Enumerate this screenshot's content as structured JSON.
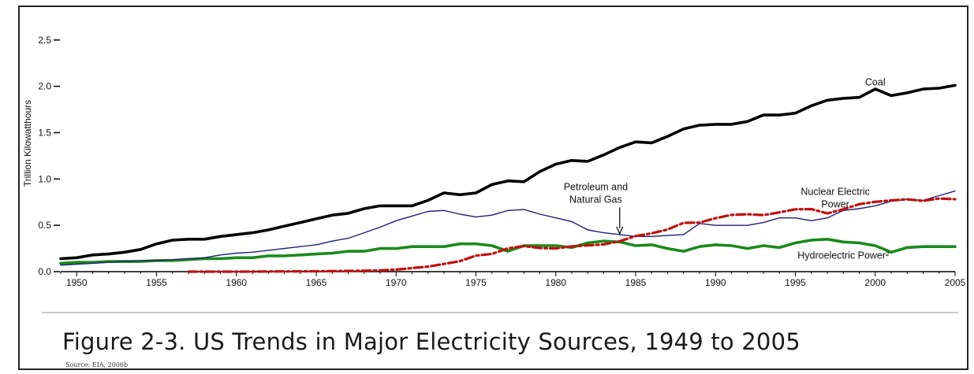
{
  "caption": "Figure 2-3.  US Trends in Major Electricity Sources, 1949 to 2005",
  "source": "Source:  EIA, 2006b",
  "chart_data": {
    "type": "line",
    "title": "",
    "xlabel": "",
    "ylabel": "Trillion Kilowatthours",
    "xlim": [
      1949,
      2005
    ],
    "ylim": [
      0,
      2.6
    ],
    "x_ticks": [
      1950,
      1955,
      1960,
      1965,
      1970,
      1975,
      1980,
      1985,
      1990,
      1995,
      2000,
      2005
    ],
    "x_tick_labels": [
      "1950",
      "1955",
      "1960",
      "1965",
      "1970",
      "1975",
      "1980",
      "1985",
      "1990",
      "1995",
      "2000",
      "2005"
    ],
    "y_ticks": [
      0,
      0.5,
      1.0,
      1.5,
      2.0,
      2.5
    ],
    "y_tick_labels": [
      "0.0",
      "0.5",
      "1.0",
      "1.5",
      "2.0",
      "2.5"
    ],
    "grid": false,
    "legend": "none",
    "series": [
      {
        "name": "Coal",
        "color": "#000000",
        "style": "solid-thick",
        "points": [
          [
            1949,
            0.14
          ],
          [
            1950,
            0.15
          ],
          [
            1951,
            0.18
          ],
          [
            1952,
            0.19
          ],
          [
            1953,
            0.21
          ],
          [
            1954,
            0.24
          ],
          [
            1955,
            0.3
          ],
          [
            1956,
            0.34
          ],
          [
            1957,
            0.35
          ],
          [
            1958,
            0.35
          ],
          [
            1959,
            0.38
          ],
          [
            1960,
            0.4
          ],
          [
            1961,
            0.42
          ],
          [
            1962,
            0.45
          ],
          [
            1963,
            0.49
          ],
          [
            1964,
            0.53
          ],
          [
            1965,
            0.57
          ],
          [
            1966,
            0.61
          ],
          [
            1967,
            0.63
          ],
          [
            1968,
            0.68
          ],
          [
            1969,
            0.71
          ],
          [
            1970,
            0.71
          ],
          [
            1971,
            0.71
          ],
          [
            1972,
            0.77
          ],
          [
            1973,
            0.85
          ],
          [
            1974,
            0.83
          ],
          [
            1975,
            0.85
          ],
          [
            1976,
            0.94
          ],
          [
            1977,
            0.98
          ],
          [
            1978,
            0.97
          ],
          [
            1979,
            1.08
          ],
          [
            1980,
            1.16
          ],
          [
            1981,
            1.2
          ],
          [
            1982,
            1.19
          ],
          [
            1983,
            1.26
          ],
          [
            1984,
            1.34
          ],
          [
            1985,
            1.4
          ],
          [
            1986,
            1.39
          ],
          [
            1987,
            1.46
          ],
          [
            1988,
            1.54
          ],
          [
            1989,
            1.58
          ],
          [
            1990,
            1.59
          ],
          [
            1991,
            1.59
          ],
          [
            1992,
            1.62
          ],
          [
            1993,
            1.69
          ],
          [
            1994,
            1.69
          ],
          [
            1995,
            1.71
          ],
          [
            1996,
            1.79
          ],
          [
            1997,
            1.85
          ],
          [
            1998,
            1.87
          ],
          [
            1999,
            1.88
          ],
          [
            2000,
            1.97
          ],
          [
            2001,
            1.9
          ],
          [
            2002,
            1.93
          ],
          [
            2003,
            1.97
          ],
          [
            2004,
            1.98
          ],
          [
            2005,
            2.01
          ]
        ]
      },
      {
        "name": "Petroleum and Natural Gas",
        "color": "#1f1f78",
        "style": "solid-thin",
        "points": [
          [
            1949,
            0.07
          ],
          [
            1950,
            0.08
          ],
          [
            1951,
            0.09
          ],
          [
            1952,
            0.1
          ],
          [
            1953,
            0.11
          ],
          [
            1954,
            0.12
          ],
          [
            1955,
            0.12
          ],
          [
            1956,
            0.13
          ],
          [
            1957,
            0.14
          ],
          [
            1958,
            0.15
          ],
          [
            1959,
            0.18
          ],
          [
            1960,
            0.2
          ],
          [
            1961,
            0.21
          ],
          [
            1962,
            0.23
          ],
          [
            1963,
            0.25
          ],
          [
            1964,
            0.27
          ],
          [
            1965,
            0.29
          ],
          [
            1966,
            0.33
          ],
          [
            1967,
            0.36
          ],
          [
            1968,
            0.42
          ],
          [
            1969,
            0.48
          ],
          [
            1970,
            0.55
          ],
          [
            1971,
            0.6
          ],
          [
            1972,
            0.65
          ],
          [
            1973,
            0.66
          ],
          [
            1974,
            0.62
          ],
          [
            1975,
            0.59
          ],
          [
            1976,
            0.61
          ],
          [
            1977,
            0.66
          ],
          [
            1978,
            0.67
          ],
          [
            1979,
            0.62
          ],
          [
            1980,
            0.58
          ],
          [
            1981,
            0.54
          ],
          [
            1982,
            0.45
          ],
          [
            1983,
            0.42
          ],
          [
            1984,
            0.4
          ],
          [
            1985,
            0.38
          ],
          [
            1986,
            0.38
          ],
          [
            1987,
            0.39
          ],
          [
            1988,
            0.4
          ],
          [
            1989,
            0.52
          ],
          [
            1990,
            0.5
          ],
          [
            1991,
            0.5
          ],
          [
            1992,
            0.5
          ],
          [
            1993,
            0.53
          ],
          [
            1994,
            0.58
          ],
          [
            1995,
            0.58
          ],
          [
            1996,
            0.55
          ],
          [
            1997,
            0.58
          ],
          [
            1998,
            0.66
          ],
          [
            1999,
            0.68
          ],
          [
            2000,
            0.71
          ],
          [
            2001,
            0.76
          ],
          [
            2002,
            0.78
          ],
          [
            2003,
            0.77
          ],
          [
            2004,
            0.82
          ],
          [
            2005,
            0.87
          ]
        ]
      },
      {
        "name": "Nuclear Electric Power",
        "color": "#c01010",
        "style": "dash-dot",
        "points": [
          [
            1957,
            0.0
          ],
          [
            1960,
            0.0
          ],
          [
            1965,
            0.004
          ],
          [
            1968,
            0.01
          ],
          [
            1969,
            0.014
          ],
          [
            1970,
            0.022
          ],
          [
            1971,
            0.038
          ],
          [
            1972,
            0.054
          ],
          [
            1973,
            0.083
          ],
          [
            1974,
            0.114
          ],
          [
            1975,
            0.173
          ],
          [
            1976,
            0.191
          ],
          [
            1977,
            0.251
          ],
          [
            1978,
            0.276
          ],
          [
            1979,
            0.255
          ],
          [
            1980,
            0.251
          ],
          [
            1981,
            0.273
          ],
          [
            1982,
            0.283
          ],
          [
            1983,
            0.294
          ],
          [
            1984,
            0.328
          ],
          [
            1985,
            0.384
          ],
          [
            1986,
            0.414
          ],
          [
            1987,
            0.455
          ],
          [
            1988,
            0.527
          ],
          [
            1989,
            0.529
          ],
          [
            1990,
            0.577
          ],
          [
            1991,
            0.613
          ],
          [
            1992,
            0.619
          ],
          [
            1993,
            0.61
          ],
          [
            1994,
            0.64
          ],
          [
            1995,
            0.673
          ],
          [
            1996,
            0.675
          ],
          [
            1997,
            0.629
          ],
          [
            1998,
            0.673
          ],
          [
            1999,
            0.728
          ],
          [
            2000,
            0.754
          ],
          [
            2001,
            0.769
          ],
          [
            2002,
            0.78
          ],
          [
            2003,
            0.764
          ],
          [
            2004,
            0.789
          ],
          [
            2005,
            0.782
          ]
        ]
      },
      {
        "name": "Hydroelectric Power²",
        "color": "#1a8a1a",
        "style": "solid-thick",
        "points": [
          [
            1949,
            0.09
          ],
          [
            1950,
            0.1
          ],
          [
            1951,
            0.1
          ],
          [
            1952,
            0.11
          ],
          [
            1953,
            0.11
          ],
          [
            1954,
            0.11
          ],
          [
            1955,
            0.12
          ],
          [
            1956,
            0.12
          ],
          [
            1957,
            0.13
          ],
          [
            1958,
            0.14
          ],
          [
            1959,
            0.14
          ],
          [
            1960,
            0.15
          ],
          [
            1961,
            0.15
          ],
          [
            1962,
            0.17
          ],
          [
            1963,
            0.17
          ],
          [
            1964,
            0.18
          ],
          [
            1965,
            0.19
          ],
          [
            1966,
            0.2
          ],
          [
            1967,
            0.22
          ],
          [
            1968,
            0.22
          ],
          [
            1969,
            0.25
          ],
          [
            1970,
            0.25
          ],
          [
            1971,
            0.27
          ],
          [
            1972,
            0.27
          ],
          [
            1973,
            0.27
          ],
          [
            1974,
            0.3
          ],
          [
            1975,
            0.3
          ],
          [
            1976,
            0.28
          ],
          [
            1977,
            0.22
          ],
          [
            1978,
            0.28
          ],
          [
            1979,
            0.28
          ],
          [
            1980,
            0.28
          ],
          [
            1981,
            0.26
          ],
          [
            1982,
            0.31
          ],
          [
            1983,
            0.33
          ],
          [
            1984,
            0.32
          ],
          [
            1985,
            0.28
          ],
          [
            1986,
            0.29
          ],
          [
            1987,
            0.25
          ],
          [
            1988,
            0.22
          ],
          [
            1989,
            0.27
          ],
          [
            1990,
            0.29
          ],
          [
            1991,
            0.28
          ],
          [
            1992,
            0.25
          ],
          [
            1993,
            0.28
          ],
          [
            1994,
            0.26
          ],
          [
            1995,
            0.31
          ],
          [
            1996,
            0.34
          ],
          [
            1997,
            0.35
          ],
          [
            1998,
            0.32
          ],
          [
            1999,
            0.31
          ],
          [
            2000,
            0.28
          ],
          [
            2001,
            0.21
          ],
          [
            2002,
            0.26
          ],
          [
            2003,
            0.27
          ],
          [
            2004,
            0.27
          ],
          [
            2005,
            0.27
          ]
        ]
      }
    ],
    "annotations": [
      {
        "text": [
          "Coal"
        ],
        "x": 2000,
        "y": 2.01,
        "anchor": "middle",
        "series": "Coal"
      },
      {
        "text": [
          "Petroleum and",
          "Natural Gas"
        ],
        "x": 1982.5,
        "y": 0.88,
        "anchor": "middle",
        "series": "Petroleum and Natural Gas",
        "arrow_to": [
          1984,
          0.4
        ]
      },
      {
        "text": [
          "Nuclear Electric",
          "Power"
        ],
        "x": 1997.5,
        "y": 0.83,
        "anchor": "middle",
        "series": "Nuclear Electric Power"
      },
      {
        "text": [
          "Hydroelectric Power²"
        ],
        "x": 1998,
        "y": 0.14,
        "anchor": "middle",
        "series": "Hydroelectric Power²"
      }
    ]
  }
}
